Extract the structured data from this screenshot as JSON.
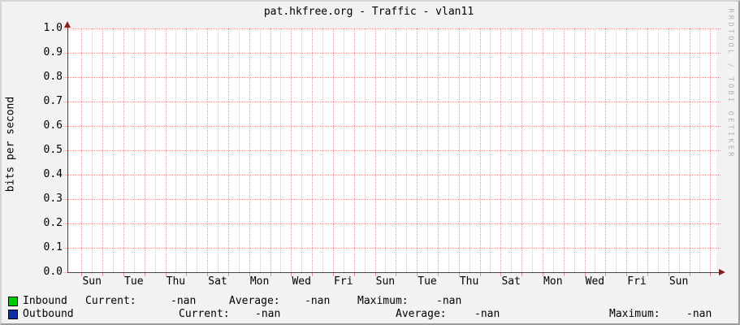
{
  "title": "pat.hkfree.org - Traffic - vlan11",
  "watermark": "RRDTOOL / TOBI OETIKER",
  "chart_data": {
    "type": "line",
    "title": "pat.hkfree.org - Traffic - vlan11",
    "xlabel": "",
    "ylabel": "bits per second",
    "ylim": [
      0.0,
      1.0
    ],
    "y_ticks": [
      "1.0",
      "0.9",
      "0.8",
      "0.7",
      "0.6",
      "0.5",
      "0.4",
      "0.3",
      "0.2",
      "0.1",
      "0.0"
    ],
    "x_ticks": [
      "Sun",
      "Tue",
      "Thu",
      "Sat",
      "Mon",
      "Wed",
      "Fri",
      "Sun",
      "Tue",
      "Thu",
      "Sat",
      "Mon",
      "Wed",
      "Fri",
      "Sun"
    ],
    "grid": true,
    "legend_position": "bottom",
    "series": [
      {
        "name": "Inbound",
        "color": "#00cc00",
        "values": []
      },
      {
        "name": "Outbound",
        "color": "#0d2fa6",
        "values": []
      }
    ]
  },
  "legend": {
    "rows": [
      {
        "label": "Inbound",
        "swatch_color": "#00cc00",
        "fields": [
          {
            "label": "Current:",
            "value": "-nan"
          },
          {
            "label": "Average:",
            "value": "-nan"
          },
          {
            "label": "Maximum:",
            "value": "-nan"
          }
        ]
      },
      {
        "label": "Outbound",
        "swatch_color": "#0d2fa6",
        "fields": [
          {
            "label": "Current:",
            "value": "-nan"
          },
          {
            "label": "Average:",
            "value": "-nan"
          },
          {
            "label": "Maximum:",
            "value": "-nan"
          }
        ]
      }
    ]
  },
  "colors": {
    "background": "#f2f2f2",
    "canvas": "#ffffff",
    "grid_major": "#e89494",
    "grid_minor": "#c9c9c9",
    "axis": "#474747",
    "arrow": "#8a1c1c",
    "text": "#000000",
    "watermark": "#b4b4b4",
    "border_light": "#d4d4d4",
    "border_dark": "#9c9c9c",
    "inbound": "#00cc00",
    "outbound": "#0d2fa6"
  }
}
